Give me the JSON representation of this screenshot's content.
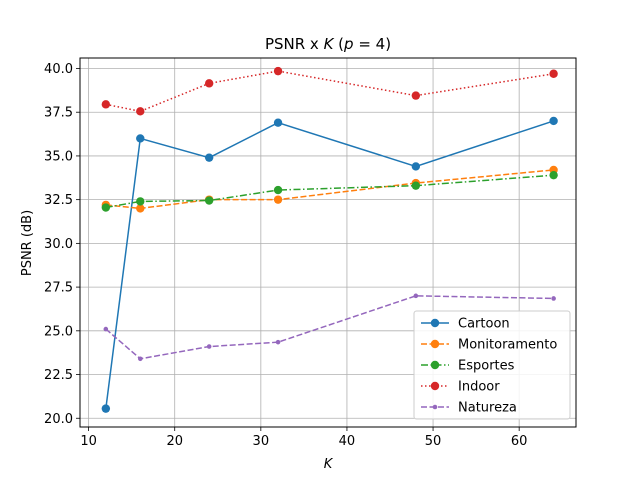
{
  "chart_data": {
    "type": "line",
    "title_parts": [
      "PSNR x ",
      "K",
      " (",
      "p",
      " = 4)"
    ],
    "xlabel": "K",
    "ylabel": "PSNR (dB)",
    "xlim": [
      9,
      66.6
    ],
    "ylim": [
      19.5,
      40.6
    ],
    "xticks": [
      10,
      20,
      30,
      40,
      50,
      60
    ],
    "yticks": [
      20.0,
      22.5,
      25.0,
      27.5,
      30.0,
      32.5,
      35.0,
      37.5,
      40.0
    ],
    "xtick_labels": [
      "10",
      "20",
      "30",
      "40",
      "50",
      "60"
    ],
    "ytick_labels": [
      "20.0",
      "22.5",
      "25.0",
      "27.5",
      "30.0",
      "32.5",
      "35.0",
      "37.5",
      "40.0"
    ],
    "grid": true,
    "legend_position": "lower right",
    "x": [
      12,
      16,
      24,
      32,
      48,
      64
    ],
    "series": [
      {
        "name": "Cartoon",
        "color": "#1f77b4",
        "dash": "solid",
        "marker": "circle",
        "values": [
          20.55,
          36.0,
          34.9,
          36.9,
          34.4,
          37.0
        ]
      },
      {
        "name": "Monitoramento",
        "color": "#ff7f0e",
        "dash": "dashed",
        "marker": "circle",
        "values": [
          32.2,
          32.0,
          32.5,
          32.5,
          33.45,
          34.2
        ]
      },
      {
        "name": "Esportes",
        "color": "#2ca02c",
        "dash": "dashdot",
        "marker": "circle",
        "values": [
          32.05,
          32.4,
          32.45,
          33.05,
          33.3,
          33.9
        ]
      },
      {
        "name": "Indoor",
        "color": "#d62728",
        "dash": "dotted",
        "marker": "circle",
        "values": [
          37.95,
          37.55,
          39.15,
          39.85,
          38.45,
          39.7
        ]
      },
      {
        "name": "Natureza",
        "color": "#9467bd",
        "dash": "dashed",
        "marker": "point",
        "values": [
          25.1,
          23.4,
          24.1,
          24.35,
          27.0,
          26.85
        ]
      }
    ]
  }
}
